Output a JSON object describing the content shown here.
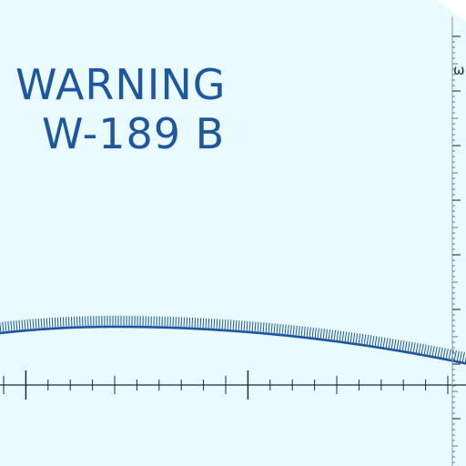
{
  "sheet": {
    "title": "WARNING",
    "code": "W-189 B",
    "edge_scale_label": "ω",
    "colors": {
      "background": "#e9fbfe",
      "ink": "#1f56a0",
      "scale_ink": "#1d2a3a"
    }
  }
}
